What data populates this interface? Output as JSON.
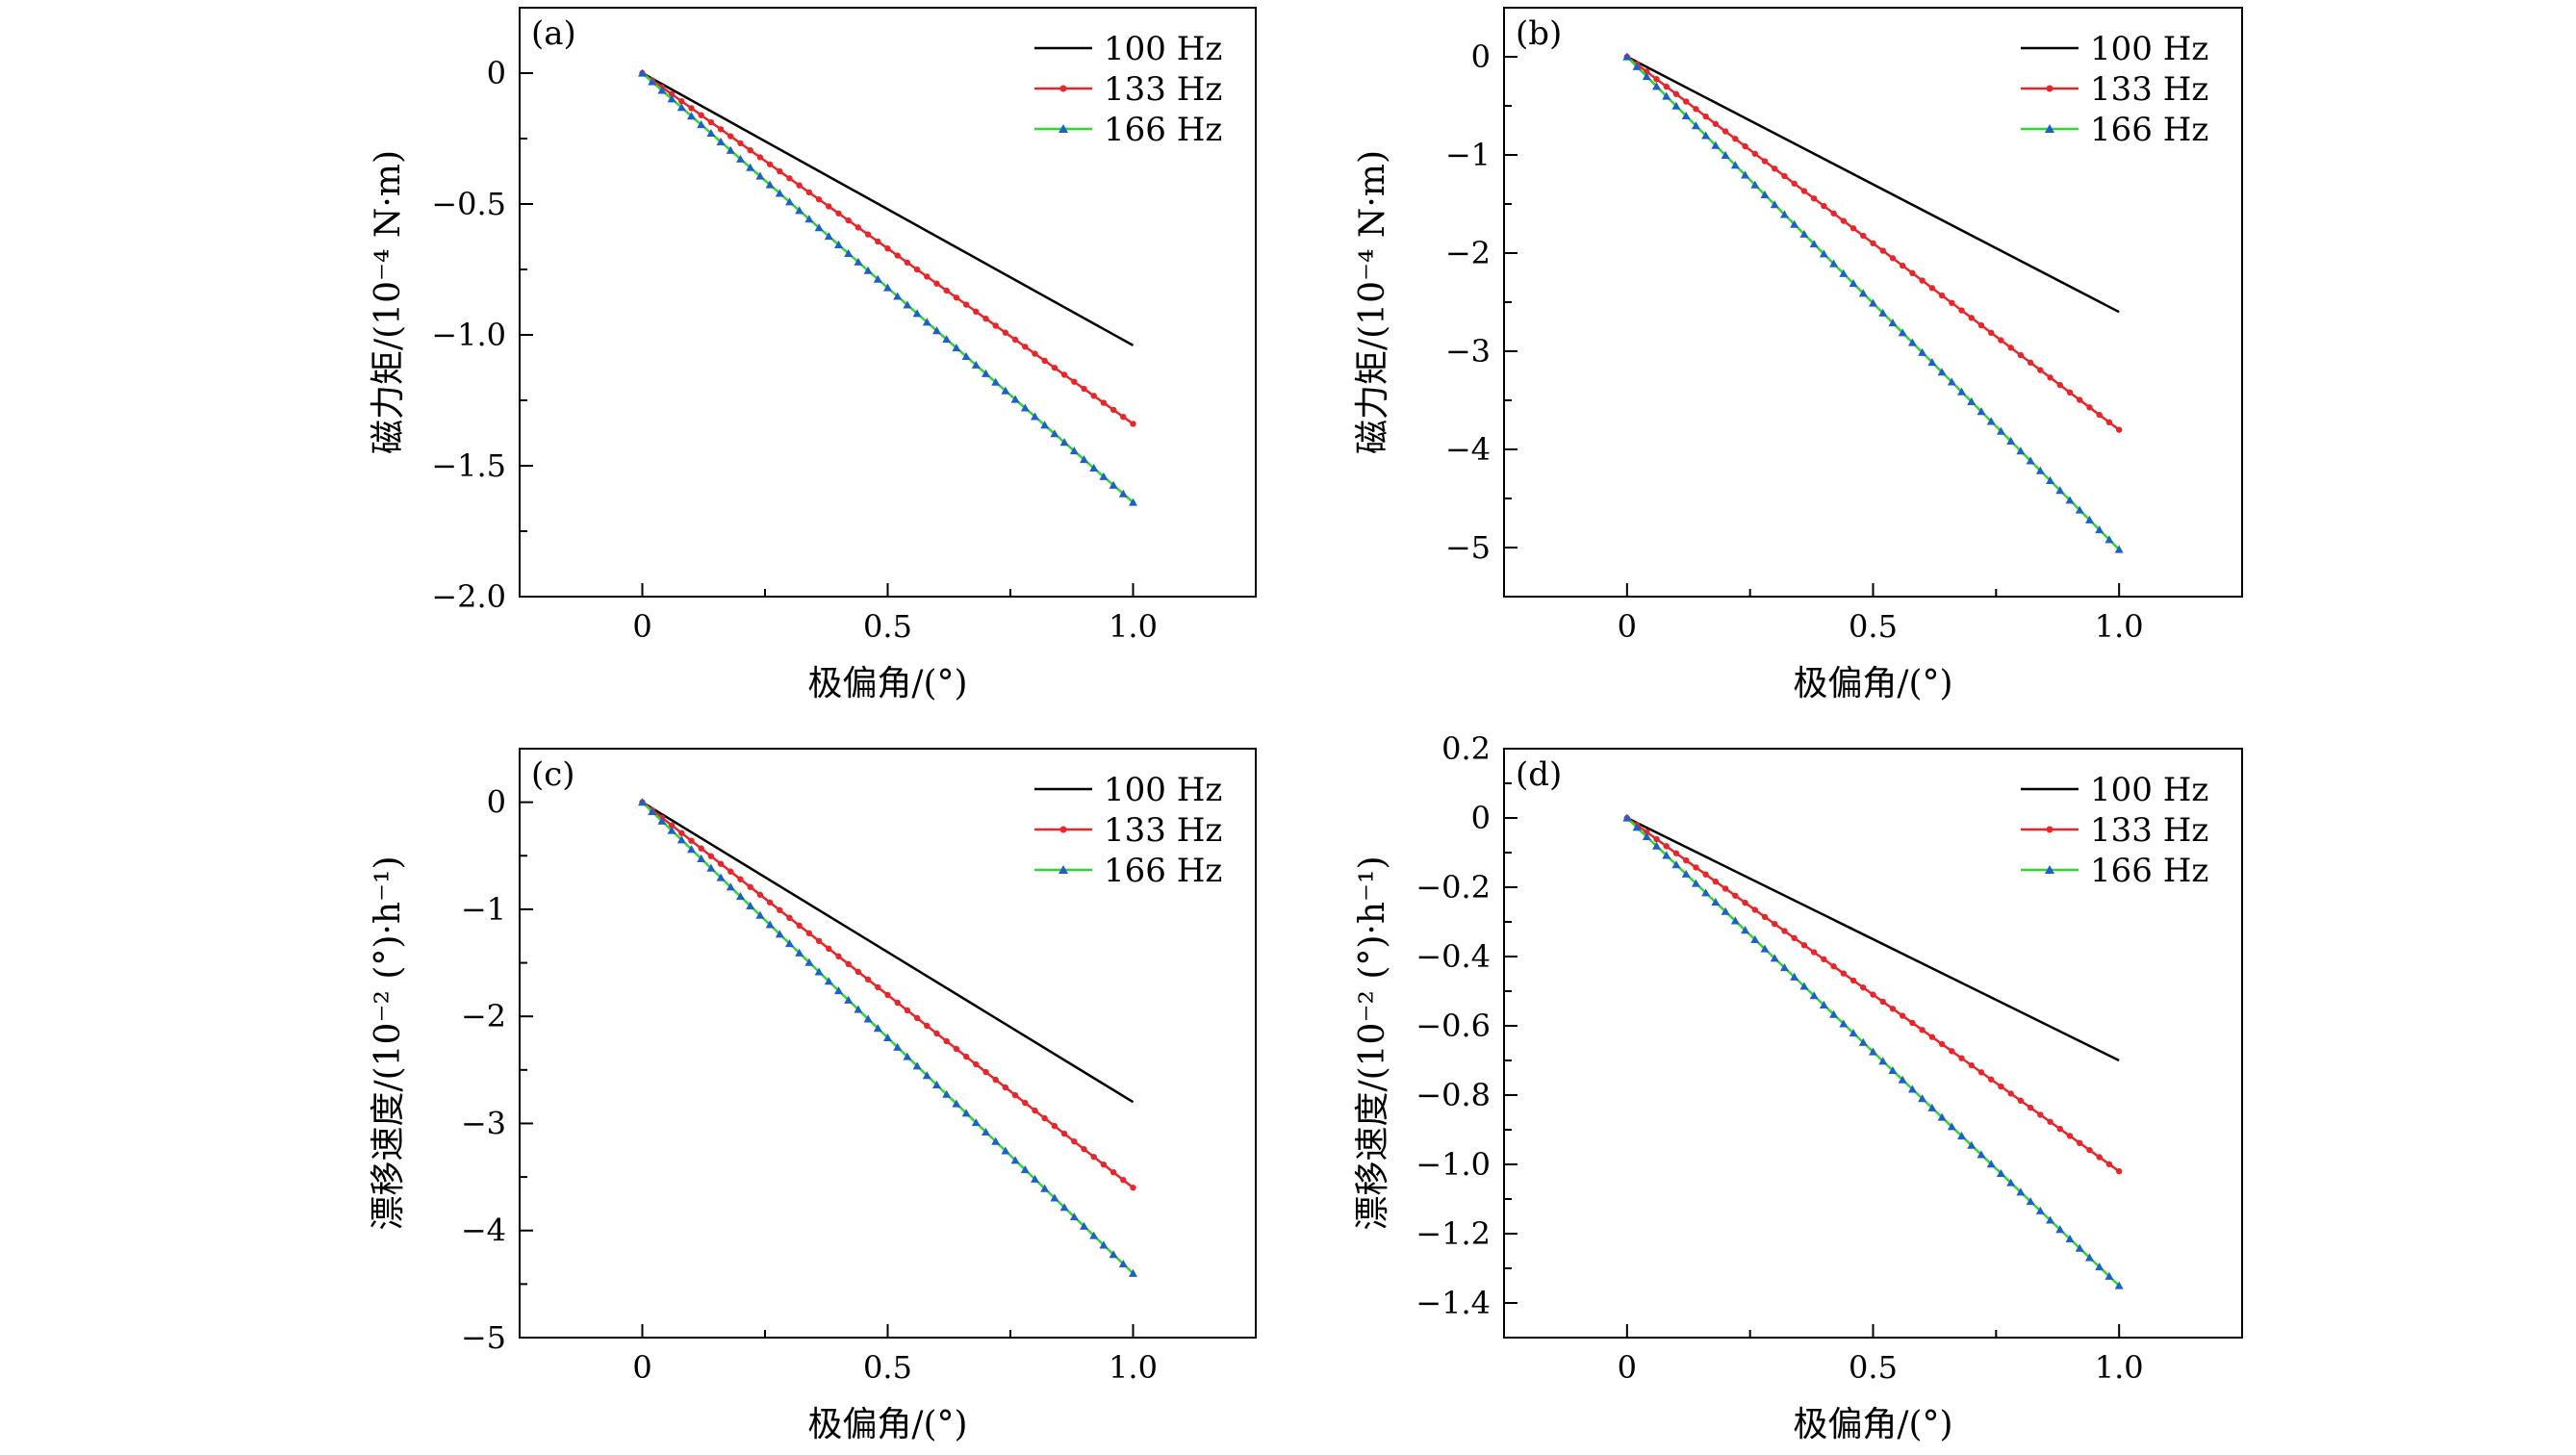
{
  "figure": {
    "background": "#ffffff"
  },
  "chart_data": [
    {
      "panel": "(a)",
      "type": "line",
      "xlabel": "极偏角/(°)",
      "ylabel": "磁力矩/(10⁻⁴ N·m)",
      "xlim": [
        -0.25,
        1.25
      ],
      "ylim": [
        -2.0,
        0.25
      ],
      "xticks": [
        0,
        0.5,
        1.0
      ],
      "xtick_labels": [
        "0",
        "0.5",
        "1.0"
      ],
      "yticks": [
        0,
        -0.5,
        -1.0,
        -1.5,
        -2.0
      ],
      "ytick_labels": [
        "0",
        "−0.5",
        "−1.0",
        "−1.5",
        "−2.0"
      ],
      "legend_position": "top-right",
      "series": [
        {
          "name": "100 Hz",
          "color": "#000000",
          "marker": "none",
          "x": [
            0,
            1.0
          ],
          "y": [
            0,
            -1.04
          ]
        },
        {
          "name": "133 Hz",
          "color": "#e8262a",
          "marker": "circle",
          "x": [
            0,
            1.0
          ],
          "y": [
            0,
            -1.34
          ]
        },
        {
          "name": "166 Hz",
          "color": "#2fd82f",
          "marker": "triangle",
          "marker_color": "#1f5fc8",
          "x": [
            0,
            1.0
          ],
          "y": [
            0,
            -1.64
          ]
        }
      ]
    },
    {
      "panel": "(b)",
      "type": "line",
      "xlabel": "极偏角/(°)",
      "ylabel": "磁力矩/(10⁻⁴ N·m)",
      "xlim": [
        -0.25,
        1.25
      ],
      "ylim": [
        -5.5,
        0.5
      ],
      "xticks": [
        0,
        0.5,
        1.0
      ],
      "xtick_labels": [
        "0",
        "0.5",
        "1.0"
      ],
      "yticks": [
        0,
        -1,
        -2,
        -3,
        -4,
        -5
      ],
      "ytick_labels": [
        "0",
        "−1",
        "−2",
        "−3",
        "−4",
        "−5"
      ],
      "legend_position": "top-right",
      "series": [
        {
          "name": "100 Hz",
          "color": "#000000",
          "marker": "none",
          "x": [
            0,
            1.0
          ],
          "y": [
            0,
            -2.6
          ]
        },
        {
          "name": "133 Hz",
          "color": "#e8262a",
          "marker": "circle",
          "x": [
            0,
            1.0
          ],
          "y": [
            0,
            -3.8
          ]
        },
        {
          "name": "166 Hz",
          "color": "#2fd82f",
          "marker": "triangle",
          "marker_color": "#1f5fc8",
          "x": [
            0,
            1.0
          ],
          "y": [
            0,
            -5.02
          ]
        }
      ]
    },
    {
      "panel": "(c)",
      "type": "line",
      "xlabel": "极偏角/(°)",
      "ylabel": "漂移速度/(10⁻² (°)·h⁻¹)",
      "xlim": [
        -0.25,
        1.25
      ],
      "ylim": [
        -5.0,
        0.5
      ],
      "xticks": [
        0,
        0.5,
        1.0
      ],
      "xtick_labels": [
        "0",
        "0.5",
        "1.0"
      ],
      "yticks": [
        0,
        -1,
        -2,
        -3,
        -4,
        -5
      ],
      "ytick_labels": [
        "0",
        "−1",
        "−2",
        "−3",
        "−4",
        "−5"
      ],
      "legend_position": "top-right",
      "series": [
        {
          "name": "100 Hz",
          "color": "#000000",
          "marker": "none",
          "x": [
            0,
            1.0
          ],
          "y": [
            0,
            -2.8
          ]
        },
        {
          "name": "133 Hz",
          "color": "#e8262a",
          "marker": "circle",
          "x": [
            0,
            1.0
          ],
          "y": [
            0,
            -3.6
          ]
        },
        {
          "name": "166 Hz",
          "color": "#2fd82f",
          "marker": "triangle",
          "marker_color": "#1f5fc8",
          "x": [
            0,
            1.0
          ],
          "y": [
            0,
            -4.4
          ]
        }
      ]
    },
    {
      "panel": "(d)",
      "type": "line",
      "xlabel": "极偏角/(°)",
      "ylabel": "漂移速度/(10⁻² (°)·h⁻¹)",
      "xlim": [
        -0.25,
        1.25
      ],
      "ylim": [
        -1.5,
        0.2
      ],
      "xticks": [
        0,
        0.5,
        1.0
      ],
      "xtick_labels": [
        "0",
        "0.5",
        "1.0"
      ],
      "yticks": [
        0.2,
        0,
        -0.2,
        -0.4,
        -0.6,
        -0.8,
        -1.0,
        -1.2,
        -1.4
      ],
      "ytick_labels": [
        "0.2",
        "0",
        "−0.2",
        "−0.4",
        "−0.6",
        "−0.8",
        "−1.0",
        "−1.2",
        "−1.4"
      ],
      "legend_position": "top-right",
      "series": [
        {
          "name": "100 Hz",
          "color": "#000000",
          "marker": "none",
          "x": [
            0,
            1.0
          ],
          "y": [
            0,
            -0.7
          ]
        },
        {
          "name": "133 Hz",
          "color": "#e8262a",
          "marker": "circle",
          "x": [
            0,
            1.0
          ],
          "y": [
            0,
            -1.02
          ]
        },
        {
          "name": "166 Hz",
          "color": "#2fd82f",
          "marker": "triangle",
          "marker_color": "#1f5fc8",
          "x": [
            0,
            1.0
          ],
          "y": [
            0,
            -1.35
          ]
        }
      ]
    }
  ]
}
